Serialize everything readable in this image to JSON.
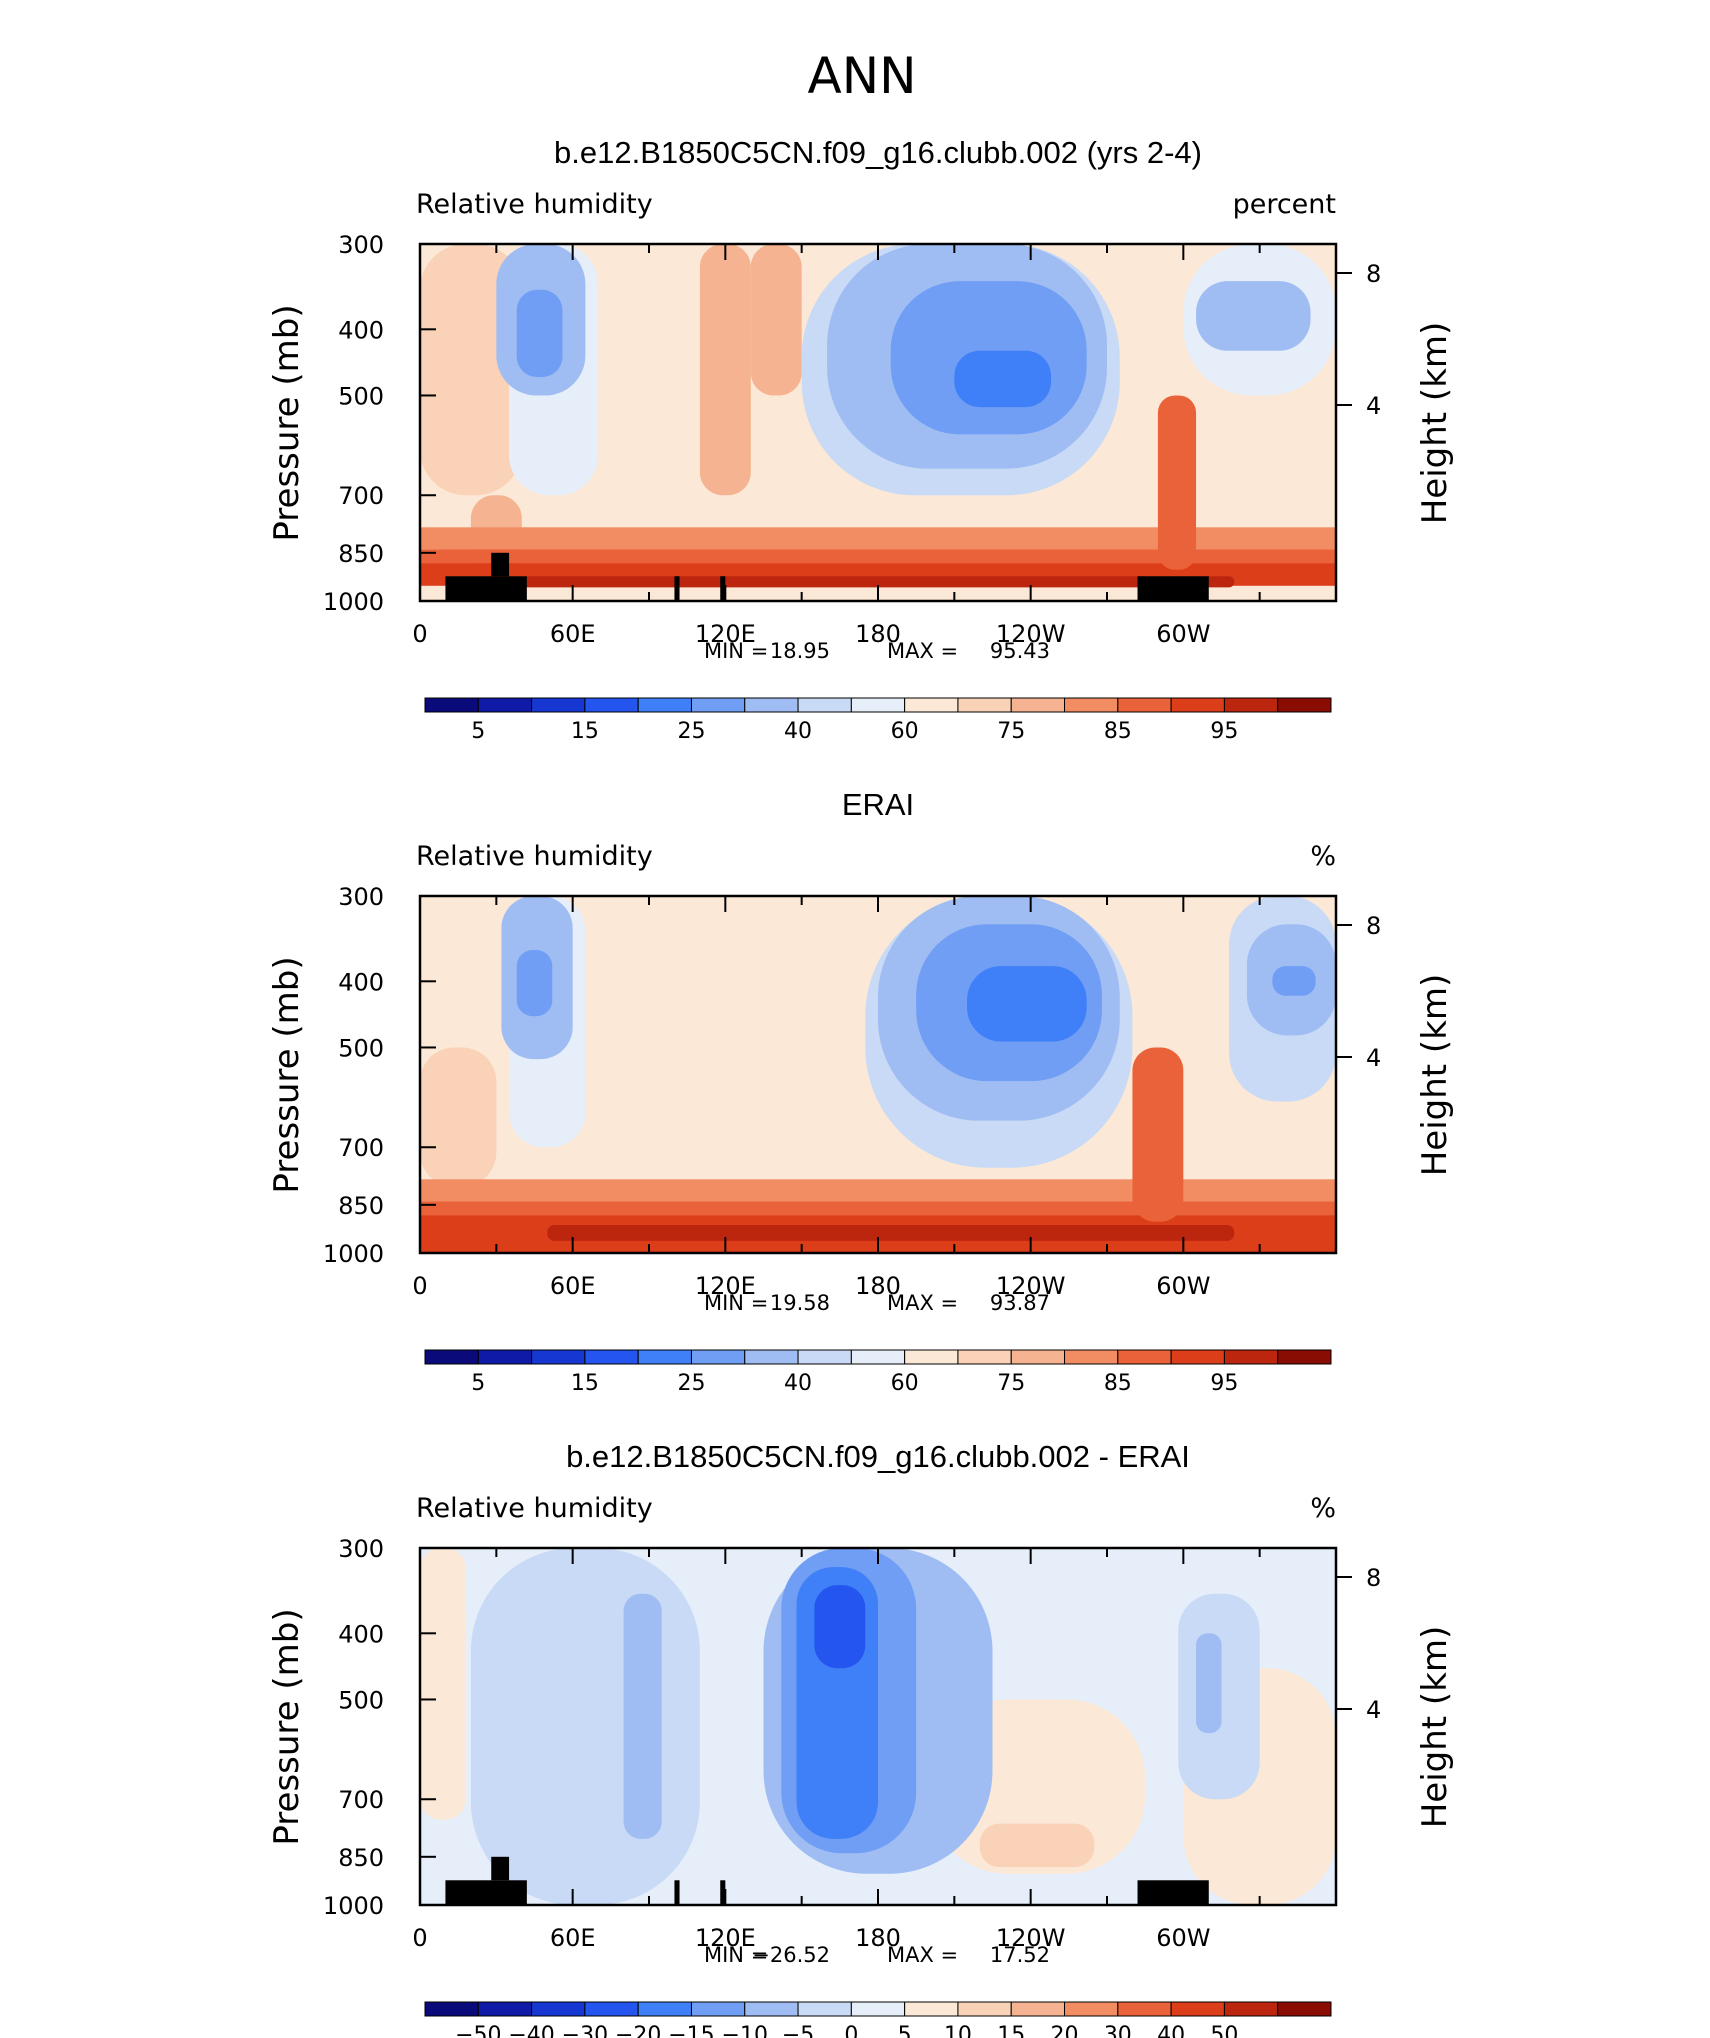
{
  "figure": {
    "title": "ANN"
  },
  "colors": {
    "abs_palette": [
      "#0a0a7a",
      "#0f1aa6",
      "#1637d1",
      "#2456ef",
      "#3f7ff7",
      "#6f9ef4",
      "#9fbdf3",
      "#c8daf6",
      "#e6eef9",
      "#fbe8d6",
      "#f9d2b8",
      "#f6b391",
      "#f18c63",
      "#ea6239",
      "#dd3e1a",
      "#bd260e",
      "#8a0d04"
    ],
    "diff_palette": [
      "#0a0a7a",
      "#0f1aa6",
      "#1637d1",
      "#2456ef",
      "#3f7ff7",
      "#6f9ef4",
      "#9fbdf3",
      "#c8daf6",
      "#e6eef9",
      "#fbe8d6",
      "#f9d2b8",
      "#f6b391",
      "#f18c63",
      "#ea6239",
      "#dd3e1a",
      "#bd260e",
      "#8a0d04"
    ],
    "land": "#000000"
  },
  "chart_data": [
    {
      "type": "contour",
      "panel": "model",
      "title": "b.e12.B1850C5CN.f09_g16.clubb.002 (yrs 2-4)",
      "variable_label": "Relative humidity",
      "units": "percent",
      "ylabel": "Pressure (mb)",
      "y2label": "Height (km)",
      "yticks": [
        "300",
        "400",
        "500",
        "700",
        "850",
        "1000"
      ],
      "y2ticks": [
        "8",
        "4"
      ],
      "xticks": [
        "0",
        "60E",
        "120E",
        "180",
        "120W",
        "60W"
      ],
      "min_label": "MIN =",
      "min_value": "18.95",
      "max_label": "MAX =",
      "max_value": "95.43",
      "colorbar_labels": [
        "5",
        "15",
        "25",
        "40",
        "60",
        "75",
        "85",
        "95"
      ],
      "colorbar_levels": [
        0,
        5,
        10,
        15,
        20,
        25,
        30,
        40,
        50,
        60,
        65,
        70,
        75,
        80,
        85,
        90,
        95,
        100
      ],
      "regions": [
        {
          "lon": [
            0,
            360
          ],
          "p": [
            300,
            1000
          ],
          "value": 62
        },
        {
          "lon": [
            0,
            40
          ],
          "p": [
            300,
            700
          ],
          "value": 68
        },
        {
          "lon": [
            20,
            40
          ],
          "p": [
            700,
            900
          ],
          "value": 72
        },
        {
          "lon": [
            110,
            130
          ],
          "p": [
            300,
            700
          ],
          "value": 72
        },
        {
          "lon": [
            130,
            150
          ],
          "p": [
            300,
            500
          ],
          "value": 70
        },
        {
          "lon": [
            0,
            360
          ],
          "p": [
            780,
            840
          ],
          "value": 75
        },
        {
          "lon": [
            0,
            360
          ],
          "p": [
            840,
            880
          ],
          "value": 82
        },
        {
          "lon": [
            0,
            360
          ],
          "p": [
            880,
            950
          ],
          "value": 88
        },
        {
          "lon": [
            40,
            320
          ],
          "p": [
            920,
            955
          ],
          "value": 92
        },
        {
          "lon": [
            290,
            305
          ],
          "p": [
            500,
            900
          ],
          "value": 80
        },
        {
          "lon": [
            35,
            70
          ],
          "p": [
            300,
            700
          ],
          "value": 50
        },
        {
          "lon": [
            30,
            65
          ],
          "p": [
            300,
            500
          ],
          "value": 38
        },
        {
          "lon": [
            38,
            56
          ],
          "p": [
            350,
            470
          ],
          "value": 27
        },
        {
          "lon": [
            150,
            275
          ],
          "p": [
            300,
            700
          ],
          "value": 45
        },
        {
          "lon": [
            160,
            270
          ],
          "p": [
            300,
            640
          ],
          "value": 35
        },
        {
          "lon": [
            185,
            262
          ],
          "p": [
            340,
            570
          ],
          "value": 27
        },
        {
          "lon": [
            210,
            248
          ],
          "p": [
            430,
            520
          ],
          "value": 22
        },
        {
          "lon": [
            300,
            360
          ],
          "p": [
            300,
            500
          ],
          "value": 52
        },
        {
          "lon": [
            305,
            350
          ],
          "p": [
            340,
            430
          ],
          "value": 38
        }
      ],
      "land": [
        {
          "lon": [
            10,
            42
          ],
          "p": [
            920,
            1000
          ]
        },
        {
          "lon": [
            28,
            35
          ],
          "p": [
            850,
            920
          ]
        },
        {
          "lon": [
            100,
            102
          ],
          "p": [
            920,
            1000
          ]
        },
        {
          "lon": [
            118,
            120
          ],
          "p": [
            920,
            1000
          ]
        },
        {
          "lon": [
            282,
            310
          ],
          "p": [
            920,
            1000
          ]
        }
      ]
    },
    {
      "type": "contour",
      "panel": "obs",
      "title": "ERAI",
      "variable_label": "Relative humidity",
      "units": "%",
      "ylabel": "Pressure (mb)",
      "y2label": "Height (km)",
      "yticks": [
        "300",
        "400",
        "500",
        "700",
        "850",
        "1000"
      ],
      "y2ticks": [
        "8",
        "4"
      ],
      "xticks": [
        "0",
        "60E",
        "120E",
        "180",
        "120W",
        "60W"
      ],
      "min_label": "MIN =",
      "min_value": "19.58",
      "max_label": "MAX =",
      "max_value": "93.87",
      "colorbar_labels": [
        "5",
        "15",
        "25",
        "40",
        "60",
        "75",
        "85",
        "95"
      ],
      "colorbar_levels": [
        0,
        5,
        10,
        15,
        20,
        25,
        30,
        40,
        50,
        60,
        65,
        70,
        75,
        80,
        85,
        90,
        95,
        100
      ],
      "regions": [
        {
          "lon": [
            0,
            360
          ],
          "p": [
            300,
            1000
          ],
          "value": 62
        },
        {
          "lon": [
            0,
            30
          ],
          "p": [
            500,
            800
          ],
          "value": 67
        },
        {
          "lon": [
            0,
            360
          ],
          "p": [
            780,
            840
          ],
          "value": 75
        },
        {
          "lon": [
            0,
            360
          ],
          "p": [
            840,
            880
          ],
          "value": 82
        },
        {
          "lon": [
            0,
            360
          ],
          "p": [
            880,
            1000
          ],
          "value": 88
        },
        {
          "lon": [
            50,
            320
          ],
          "p": [
            910,
            960
          ],
          "value": 92
        },
        {
          "lon": [
            280,
            300
          ],
          "p": [
            500,
            900
          ],
          "value": 80
        },
        {
          "lon": [
            35,
            65
          ],
          "p": [
            300,
            700
          ],
          "value": 50
        },
        {
          "lon": [
            32,
            60
          ],
          "p": [
            300,
            520
          ],
          "value": 38
        },
        {
          "lon": [
            38,
            52
          ],
          "p": [
            360,
            450
          ],
          "value": 26
        },
        {
          "lon": [
            175,
            280
          ],
          "p": [
            300,
            750
          ],
          "value": 45
        },
        {
          "lon": [
            180,
            275
          ],
          "p": [
            300,
            640
          ],
          "value": 35
        },
        {
          "lon": [
            195,
            268
          ],
          "p": [
            330,
            560
          ],
          "value": 28
        },
        {
          "lon": [
            215,
            262
          ],
          "p": [
            380,
            490
          ],
          "value": 23
        },
        {
          "lon": [
            318,
            360
          ],
          "p": [
            300,
            600
          ],
          "value": 48
        },
        {
          "lon": [
            325,
            360
          ],
          "p": [
            330,
            480
          ],
          "value": 35
        },
        {
          "lon": [
            335,
            352
          ],
          "p": [
            380,
            420
          ],
          "value": 28
        }
      ],
      "land": []
    },
    {
      "type": "contour",
      "panel": "diff",
      "title": "b.e12.B1850C5CN.f09_g16.clubb.002 - ERAI",
      "variable_label": "Relative humidity",
      "units": "%",
      "ylabel": "Pressure (mb)",
      "y2label": "Height (km)",
      "yticks": [
        "300",
        "400",
        "500",
        "700",
        "850",
        "1000"
      ],
      "y2ticks": [
        "8",
        "4"
      ],
      "xticks": [
        "0",
        "60E",
        "120E",
        "180",
        "120W",
        "60W"
      ],
      "min_label": "MIN =",
      "min_value": "−26.52",
      "max_label": "MAX =",
      "max_value": "17.52",
      "colorbar_labels": [
        "−50",
        "−40",
        "−30",
        "−20",
        "−15",
        "−10",
        "−5",
        "0",
        "5",
        "10",
        "15",
        "20",
        "30",
        "40",
        "50"
      ],
      "colorbar_levels": [
        -60,
        -50,
        -40,
        -30,
        -20,
        -15,
        -10,
        -5,
        0,
        5,
        10,
        15,
        20,
        30,
        40,
        50,
        60
      ],
      "regions": [
        {
          "lon": [
            0,
            360
          ],
          "p": [
            300,
            1000
          ],
          "value": 2
        },
        {
          "lon": [
            0,
            18
          ],
          "p": [
            300,
            750
          ],
          "value": 6
        },
        {
          "lon": [
            200,
            285
          ],
          "p": [
            500,
            900
          ],
          "value": 7
        },
        {
          "lon": [
            220,
            265
          ],
          "p": [
            760,
            880
          ],
          "value": 12
        },
        {
          "lon": [
            300,
            360
          ],
          "p": [
            450,
            1000
          ],
          "value": 7
        },
        {
          "lon": [
            20,
            110
          ],
          "p": [
            300,
            1000
          ],
          "value": -3
        },
        {
          "lon": [
            80,
            95
          ],
          "p": [
            350,
            800
          ],
          "value": -7
        },
        {
          "lon": [
            135,
            225
          ],
          "p": [
            300,
            900
          ],
          "value": -7
        },
        {
          "lon": [
            142,
            195
          ],
          "p": [
            300,
            840
          ],
          "value": -12
        },
        {
          "lon": [
            148,
            180
          ],
          "p": [
            320,
            800
          ],
          "value": -17
        },
        {
          "lon": [
            155,
            175
          ],
          "p": [
            340,
            450
          ],
          "value": -22
        },
        {
          "lon": [
            298,
            330
          ],
          "p": [
            350,
            700
          ],
          "value": -3
        },
        {
          "lon": [
            305,
            315
          ],
          "p": [
            400,
            560
          ],
          "value": -7
        }
      ],
      "land": [
        {
          "lon": [
            10,
            42
          ],
          "p": [
            920,
            1000
          ]
        },
        {
          "lon": [
            28,
            35
          ],
          "p": [
            850,
            920
          ]
        },
        {
          "lon": [
            100,
            102
          ],
          "p": [
            920,
            1000
          ]
        },
        {
          "lon": [
            118,
            120
          ],
          "p": [
            920,
            1000
          ]
        },
        {
          "lon": [
            282,
            310
          ],
          "p": [
            920,
            1000
          ]
        }
      ]
    }
  ]
}
